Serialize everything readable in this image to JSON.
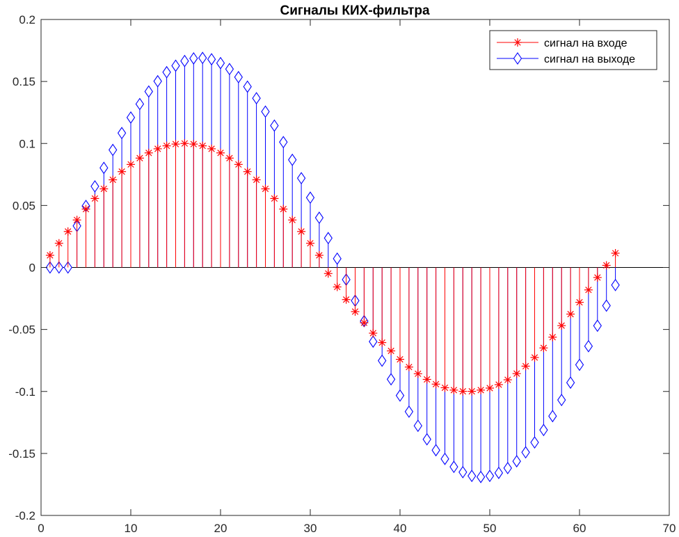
{
  "chart_data": {
    "type": "stem",
    "title": "Сигналы КИХ-фильтра",
    "xlabel": "",
    "ylabel": "",
    "xlim": [
      0,
      70
    ],
    "ylim": [
      -0.2,
      0.2
    ],
    "x_ticks": [
      0,
      10,
      20,
      30,
      40,
      50,
      60,
      70
    ],
    "y_ticks": [
      -0.2,
      -0.15,
      -0.1,
      -0.05,
      0,
      0.05,
      0.1,
      0.15,
      0.2
    ],
    "y_tick_labels": [
      "-0.2",
      "-0.15",
      "-0.1",
      "-0.05",
      "0",
      "0.05",
      "0.1",
      "0.15",
      "0.2"
    ],
    "grid": false,
    "legend_position": "top-right",
    "x": [
      1,
      2,
      3,
      4,
      5,
      6,
      7,
      8,
      9,
      10,
      11,
      12,
      13,
      14,
      15,
      16,
      17,
      18,
      19,
      20,
      21,
      22,
      23,
      24,
      25,
      26,
      27,
      28,
      29,
      30,
      31,
      32,
      33,
      34,
      35,
      36,
      37,
      38,
      39,
      40,
      41,
      42,
      43,
      44,
      45,
      46,
      47,
      48,
      49,
      50,
      51,
      52,
      53,
      54,
      55,
      56,
      57,
      58,
      59,
      60,
      61,
      62,
      63,
      64
    ],
    "series": [
      {
        "name": "сигнал на входе",
        "color": "#ff0000",
        "marker": "asterisk",
        "values": [
          0.0098,
          0.0195,
          0.029,
          0.0383,
          0.0471,
          0.0556,
          0.0634,
          0.0707,
          0.0773,
          0.0831,
          0.0882,
          0.0924,
          0.0957,
          0.0981,
          0.0995,
          0.1,
          0.0995,
          0.0981,
          0.0957,
          0.0924,
          0.0882,
          0.0831,
          0.0773,
          0.0707,
          0.0634,
          0.0556,
          0.0471,
          0.0383,
          0.029,
          0.0195,
          0.0098,
          -0.0049,
          -0.0157,
          -0.0259,
          -0.0356,
          -0.0446,
          -0.053,
          -0.0606,
          -0.0673,
          -0.0741,
          -0.0803,
          -0.0857,
          -0.0903,
          -0.0941,
          -0.097,
          -0.0989,
          -0.0999,
          -0.0999,
          -0.0989,
          -0.0973,
          -0.0945,
          -0.0906,
          -0.0856,
          -0.0796,
          -0.0726,
          -0.0649,
          -0.0562,
          -0.0469,
          -0.0376,
          -0.0281,
          -0.0181,
          -0.0081,
          0.0017,
          0.0115
        ]
      },
      {
        "name": "сигнал на выходе",
        "color": "#0000ff",
        "marker": "diamond",
        "values": [
          0,
          0,
          0,
          0.0335,
          0.0496,
          0.0654,
          0.0803,
          0.0948,
          0.1084,
          0.1209,
          0.1318,
          0.1419,
          0.1502,
          0.1575,
          0.1627,
          0.1665,
          0.1686,
          0.169,
          0.1679,
          0.1648,
          0.16,
          0.1535,
          0.1458,
          0.1365,
          0.1257,
          0.1144,
          0.1011,
          0.0868,
          0.072,
          0.0563,
          0.0401,
          0.0237,
          0.0071,
          -0.0098,
          -0.0268,
          -0.0433,
          -0.0598,
          -0.0752,
          -0.0902,
          -0.1033,
          -0.1163,
          -0.1277,
          -0.1386,
          -0.1474,
          -0.1544,
          -0.1608,
          -0.1651,
          -0.1681,
          -0.169,
          -0.1681,
          -0.1657,
          -0.1618,
          -0.1563,
          -0.1491,
          -0.1411,
          -0.1311,
          -0.1199,
          -0.1069,
          -0.0929,
          -0.0785,
          -0.0635,
          -0.047,
          -0.0308,
          -0.0142
        ]
      }
    ]
  }
}
